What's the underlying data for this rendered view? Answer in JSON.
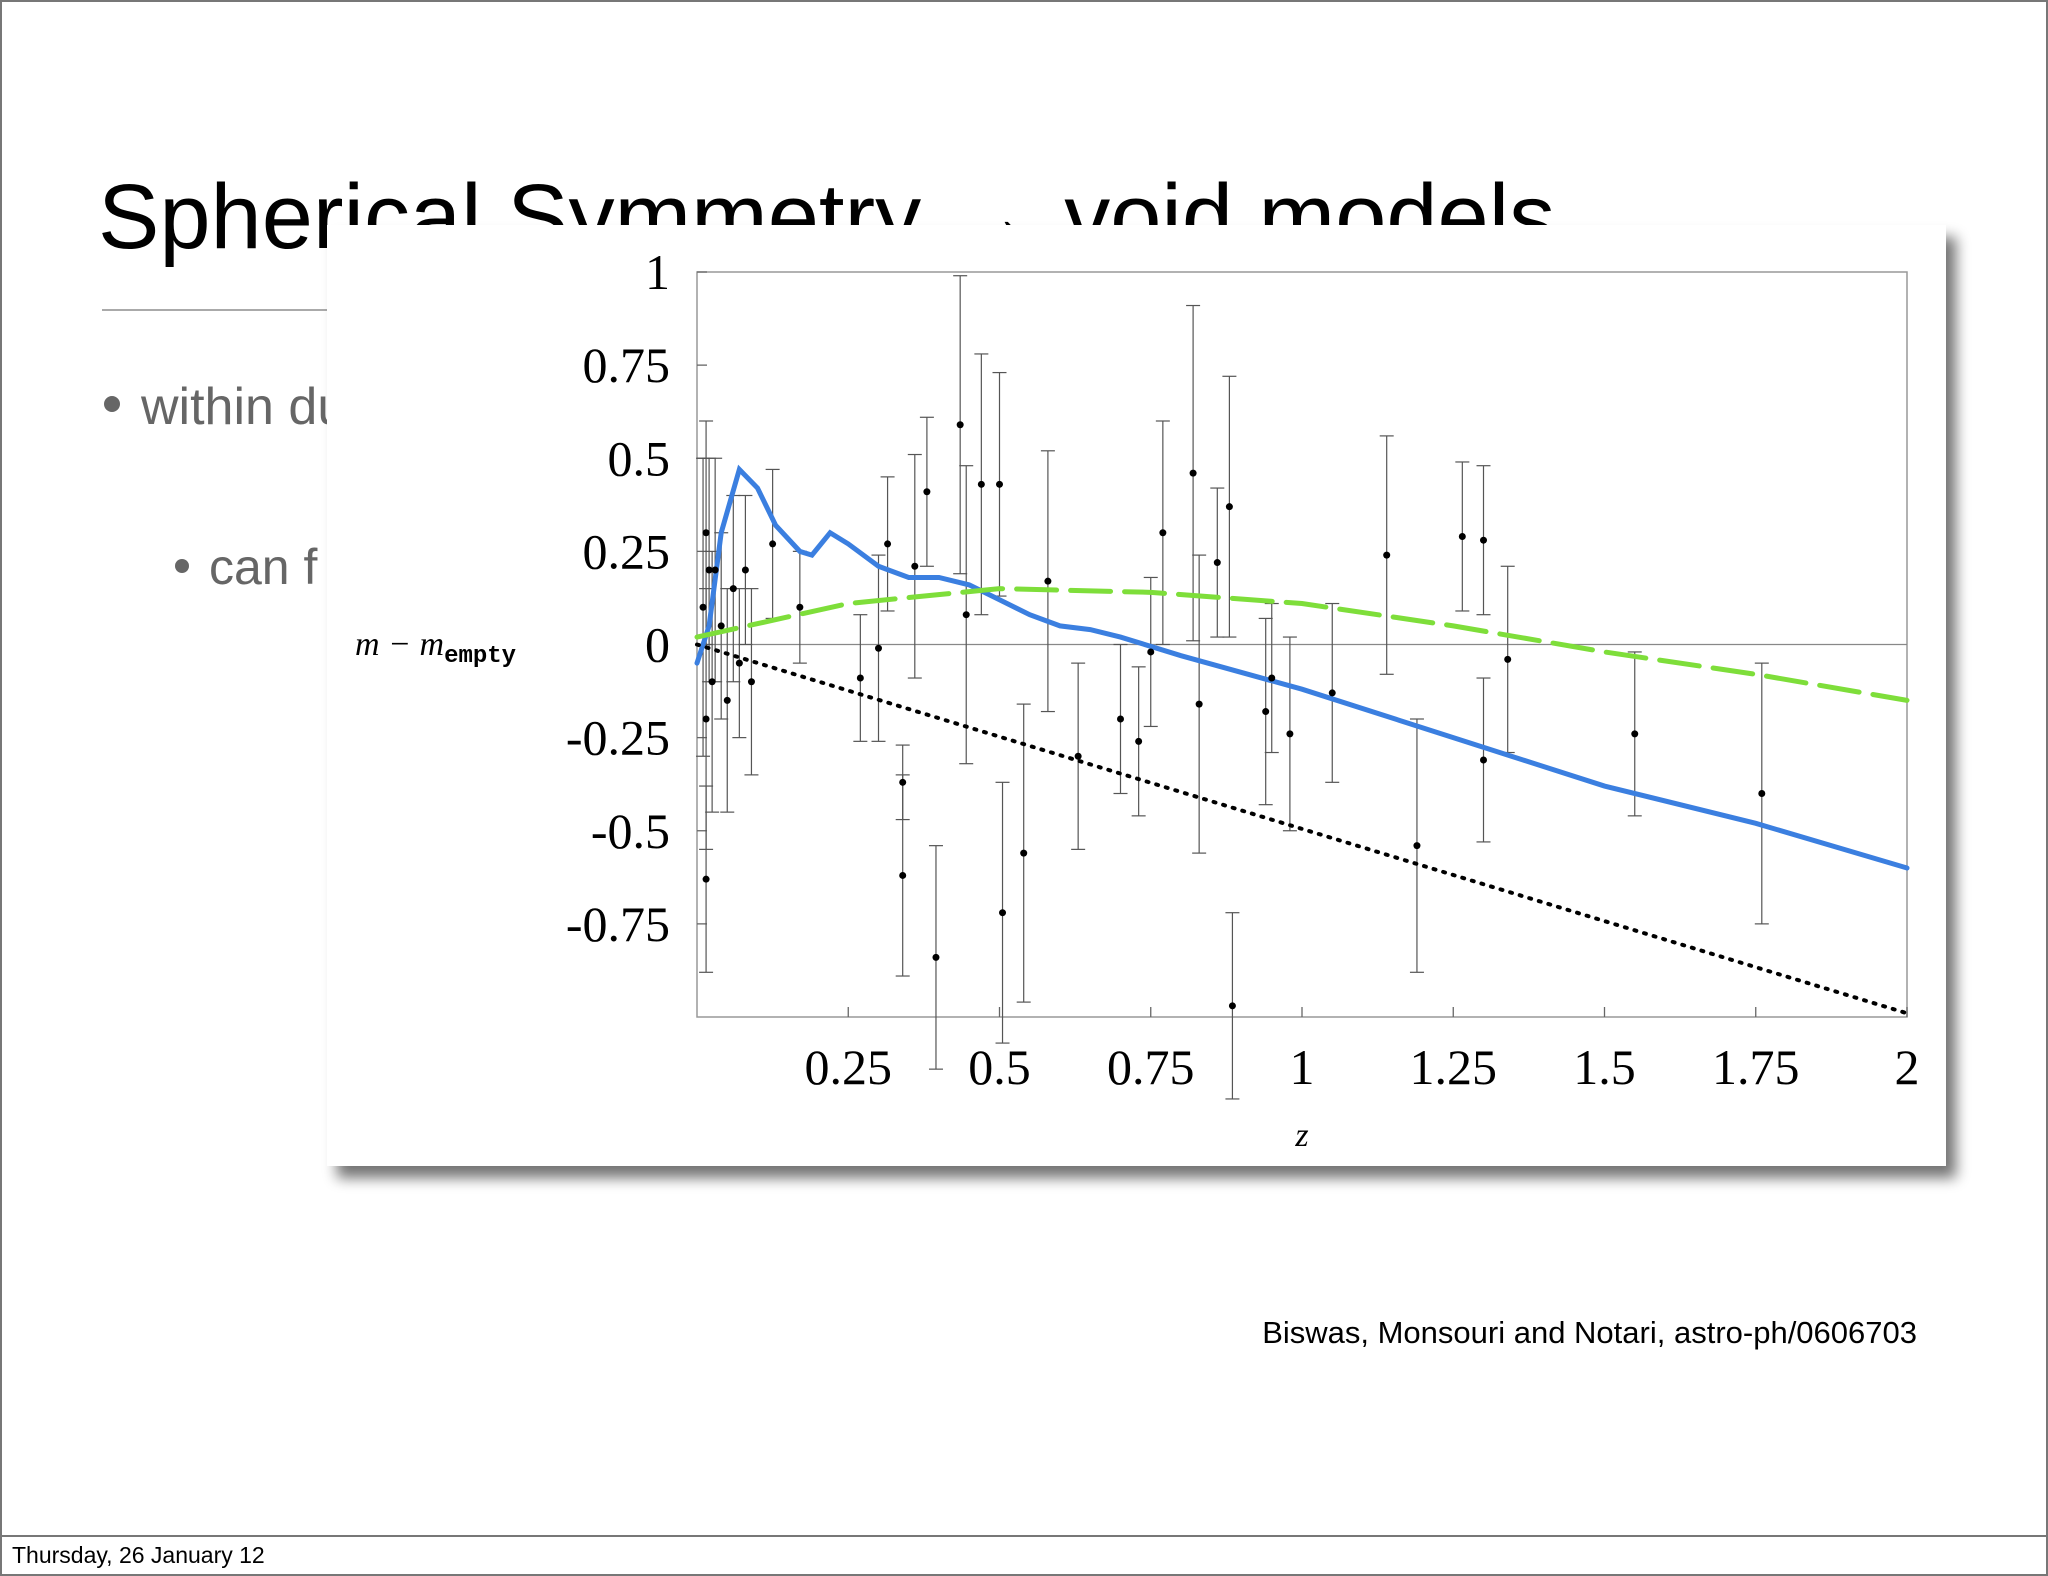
{
  "slide": {
    "title": "Spherical Symmetry → void models",
    "bullets": [
      "within du",
      "can f"
    ],
    "caption": "Biswas, Monsouri and Notari, astro-ph/0606703",
    "footer": "Thursday, 26 January 12"
  },
  "chart_data": {
    "type": "scatter",
    "xlabel": "z",
    "ylabel": "m − m",
    "ylabel_sub": "empty",
    "xlim": [
      0,
      2
    ],
    "ylim": [
      -1,
      1
    ],
    "xticks": [
      0.25,
      0.5,
      0.75,
      1,
      1.25,
      1.5,
      1.75,
      2
    ],
    "yticks": [
      1,
      0.75,
      0.5,
      0.25,
      0,
      -0.25,
      -0.5,
      -0.75
    ],
    "points": {
      "color": "#000000",
      "x": [
        0.01,
        0.015,
        0.02,
        0.025,
        0.03,
        0.015,
        0.04,
        0.05,
        0.06,
        0.07,
        0.08,
        0.09,
        0.015,
        0.125,
        0.17,
        0.27,
        0.3,
        0.315,
        0.34,
        0.34,
        0.36,
        0.38,
        0.395,
        0.435,
        0.445,
        0.47,
        0.5,
        0.505,
        0.54,
        0.58,
        0.63,
        0.7,
        0.73,
        0.75,
        0.77,
        0.82,
        0.83,
        0.86,
        0.88,
        0.885,
        0.94,
        0.95,
        0.98,
        1.05,
        1.14,
        1.19,
        1.265,
        1.3,
        1.3,
        1.34,
        1.55,
        1.76
      ],
      "y": [
        0.1,
        -0.2,
        0.2,
        -0.1,
        0.2,
        0.3,
        0.05,
        -0.15,
        0.15,
        -0.05,
        0.2,
        -0.1,
        -0.63,
        0.27,
        0.1,
        -0.09,
        -0.01,
        0.27,
        -0.37,
        -0.62,
        0.21,
        0.41,
        -0.84,
        0.59,
        0.08,
        0.43,
        0.43,
        -0.72,
        -0.56,
        0.17,
        -0.3,
        -0.2,
        -0.26,
        -0.02,
        0.3,
        0.46,
        -0.16,
        0.22,
        0.37,
        -0.97,
        -0.18,
        -0.09,
        -0.24,
        -0.13,
        0.24,
        -0.54,
        0.29,
        0.28,
        -0.31,
        -0.04,
        -0.24,
        -0.4
      ],
      "err": [
        0.4,
        0.35,
        0.3,
        0.35,
        0.3,
        0.3,
        0.25,
        0.3,
        0.25,
        0.2,
        0.2,
        0.25,
        0.25,
        0.2,
        0.15,
        0.17,
        0.25,
        0.18,
        0.1,
        0.27,
        0.3,
        0.2,
        0.3,
        0.4,
        0.4,
        0.35,
        0.3,
        0.35,
        0.4,
        0.35,
        0.25,
        0.2,
        0.2,
        0.2,
        0.3,
        0.45,
        0.4,
        0.2,
        0.35,
        0.25,
        0.25,
        0.2,
        0.26,
        0.24,
        0.32,
        0.34,
        0.2,
        0.2,
        0.22,
        0.25,
        0.22,
        0.35
      ]
    },
    "series": [
      {
        "color": "#3b7fe0",
        "style": "solid",
        "x": [
          0,
          0.02,
          0.04,
          0.07,
          0.1,
          0.13,
          0.17,
          0.19,
          0.22,
          0.25,
          0.3,
          0.35,
          0.4,
          0.45,
          0.5,
          0.55,
          0.6,
          0.65,
          0.7,
          0.8,
          1,
          1.25,
          1.5,
          1.75,
          2
        ],
        "values": [
          -0.05,
          0.05,
          0.3,
          0.47,
          0.42,
          0.32,
          0.25,
          0.24,
          0.3,
          0.27,
          0.21,
          0.18,
          0.18,
          0.16,
          0.12,
          0.08,
          0.05,
          0.04,
          0.02,
          -0.03,
          -0.12,
          -0.25,
          -0.38,
          -0.48,
          -0.6
        ]
      },
      {
        "color": "#7ede3a",
        "style": "dashed",
        "x": [
          0,
          0.25,
          0.5,
          0.75,
          1,
          1.25,
          1.5,
          1.75,
          2
        ],
        "values": [
          0.02,
          0.11,
          0.15,
          0.14,
          0.11,
          0.05,
          -0.02,
          -0.08,
          -0.15
        ]
      },
      {
        "color": "#000000",
        "style": "dotted",
        "x": [
          0,
          2
        ],
        "values": [
          0,
          -0.99
        ]
      }
    ]
  }
}
